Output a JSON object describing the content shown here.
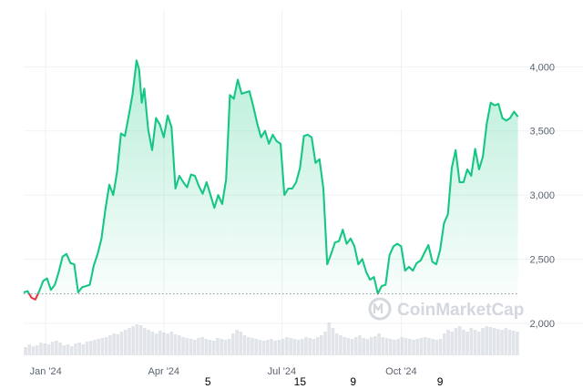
{
  "chart_data": {
    "type": "area",
    "title": "",
    "xlabel": "",
    "ylabel": "",
    "x_ticks": [
      "Jan '24",
      "Apr '24",
      "Jul '24",
      "Oct '24"
    ],
    "x_tick_dates": [
      "2024-01-01",
      "2024-04-01",
      "2024-07-01",
      "2024-10-01"
    ],
    "x_range": [
      "2023-12-15",
      "2024-12-31"
    ],
    "y_ticks": [
      "2,000",
      "2,500",
      "3,000",
      "3,500",
      "4,000"
    ],
    "y_tick_values": [
      2000,
      2500,
      3000,
      3500,
      4000
    ],
    "ylim": [
      1750,
      4450
    ],
    "baseline": 2230,
    "grid": true,
    "colors": {
      "up": "#16c784",
      "down": "#ea3943",
      "baseline": "#9aa1ab",
      "grid": "#eff2f5",
      "volume": "#c9ced6"
    },
    "series": [
      {
        "x": [
          "2023-12-15",
          "2023-12-18",
          "2023-12-21",
          "2023-12-24",
          "2023-12-27",
          "2023-12-30",
          "2024-01-02",
          "2024-01-05",
          "2024-01-08",
          "2024-01-11",
          "2024-01-14",
          "2024-01-17",
          "2024-01-20",
          "2024-01-23",
          "2024-01-26",
          "2024-01-29",
          "2024-02-01",
          "2024-02-04",
          "2024-02-07",
          "2024-02-10",
          "2024-02-13",
          "2024-02-16",
          "2024-02-19",
          "2024-02-22",
          "2024-02-25",
          "2024-02-28",
          "2024-03-02",
          "2024-03-05",
          "2024-03-08",
          "2024-03-11",
          "2024-03-13",
          "2024-03-15",
          "2024-03-17",
          "2024-03-20",
          "2024-03-23",
          "2024-03-26",
          "2024-03-29",
          "2024-04-01",
          "2024-04-04",
          "2024-04-07",
          "2024-04-10",
          "2024-04-13",
          "2024-04-16",
          "2024-04-19",
          "2024-04-22",
          "2024-04-25",
          "2024-04-28",
          "2024-05-01",
          "2024-05-04",
          "2024-05-07",
          "2024-05-10",
          "2024-05-13",
          "2024-05-16",
          "2024-05-19",
          "2024-05-22",
          "2024-05-25",
          "2024-05-28",
          "2024-05-31",
          "2024-06-03",
          "2024-06-06",
          "2024-06-09",
          "2024-06-12",
          "2024-06-15",
          "2024-06-18",
          "2024-06-21",
          "2024-06-24",
          "2024-06-27",
          "2024-06-30",
          "2024-07-03",
          "2024-07-06",
          "2024-07-09",
          "2024-07-12",
          "2024-07-15",
          "2024-07-18",
          "2024-07-21",
          "2024-07-24",
          "2024-07-27",
          "2024-07-30",
          "2024-08-02",
          "2024-08-05",
          "2024-08-08",
          "2024-08-11",
          "2024-08-14",
          "2024-08-17",
          "2024-08-20",
          "2024-08-23",
          "2024-08-26",
          "2024-08-29",
          "2024-09-01",
          "2024-09-04",
          "2024-09-07",
          "2024-09-10",
          "2024-09-13",
          "2024-09-16",
          "2024-09-19",
          "2024-09-22",
          "2024-09-25",
          "2024-09-28",
          "2024-10-01",
          "2024-10-04",
          "2024-10-07",
          "2024-10-10",
          "2024-10-13",
          "2024-10-16",
          "2024-10-19",
          "2024-10-22",
          "2024-10-25",
          "2024-10-28",
          "2024-10-31",
          "2024-11-03",
          "2024-11-06",
          "2024-11-09",
          "2024-11-12",
          "2024-11-15",
          "2024-11-18",
          "2024-11-21",
          "2024-11-24",
          "2024-11-27",
          "2024-11-30",
          "2024-12-03",
          "2024-12-06",
          "2024-12-09",
          "2024-12-12",
          "2024-12-15",
          "2024-12-18",
          "2024-12-21",
          "2024-12-24",
          "2024-12-27",
          "2024-12-30"
        ],
        "values": [
          2240,
          2250,
          2200,
          2185,
          2250,
          2330,
          2350,
          2260,
          2300,
          2400,
          2520,
          2540,
          2470,
          2460,
          2240,
          2280,
          2290,
          2300,
          2450,
          2540,
          2660,
          2890,
          3080,
          3000,
          3180,
          3480,
          3460,
          3620,
          3790,
          4050,
          3980,
          3720,
          3830,
          3510,
          3350,
          3600,
          3550,
          3450,
          3620,
          3530,
          3050,
          3150,
          3100,
          3060,
          3160,
          3150,
          3070,
          3010,
          3100,
          3000,
          2900,
          3000,
          2930,
          3120,
          3780,
          3750,
          3900,
          3790,
          3800,
          3810,
          3690,
          3560,
          3450,
          3500,
          3400,
          3470,
          3420,
          3400,
          3000,
          3050,
          3050,
          3100,
          3210,
          3460,
          3470,
          3450,
          3250,
          3280,
          3050,
          2460,
          2540,
          2630,
          2640,
          2730,
          2620,
          2660,
          2600,
          2460,
          2500,
          2400,
          2340,
          2360,
          2230,
          2290,
          2300,
          2530,
          2600,
          2620,
          2600,
          2410,
          2440,
          2410,
          2470,
          2490,
          2550,
          2610,
          2480,
          2460,
          2570,
          2780,
          2850,
          3210,
          3350,
          3100,
          3100,
          3200,
          3150,
          3360,
          3200,
          3300,
          3560,
          3720,
          3700,
          3710,
          3600,
          3580,
          3600,
          3650,
          3610
        ]
      }
    ],
    "volume": [
      45,
      60,
      50,
      55,
      70,
      65,
      60,
      75,
      80,
      70,
      55,
      60,
      50,
      65,
      70,
      60,
      75,
      80,
      85,
      90,
      95,
      100,
      110,
      120,
      115,
      130,
      140,
      150,
      160,
      170,
      165,
      150,
      140,
      130,
      120,
      135,
      125,
      120,
      130,
      115,
      110,
      100,
      95,
      90,
      85,
      95,
      100,
      90,
      85,
      80,
      95,
      90,
      85,
      90,
      120,
      140,
      130,
      110,
      100,
      95,
      90,
      85,
      80,
      85,
      90,
      80,
      85,
      90,
      100,
      95,
      90,
      85,
      90,
      100,
      95,
      90,
      100,
      110,
      130,
      180,
      150,
      120,
      110,
      100,
      95,
      90,
      100,
      110,
      95,
      90,
      100,
      105,
      120,
      100,
      95,
      90,
      85,
      90,
      100,
      95,
      90,
      85,
      90,
      95,
      100,
      95,
      90,
      85,
      90,
      120,
      140,
      130,
      150,
      160,
      140,
      130,
      150,
      140,
      130,
      150,
      160,
      155,
      150,
      145,
      140,
      150,
      140,
      135,
      130
    ],
    "watermark": "CoinMarketCap"
  },
  "stray_labels": [
    {
      "text": "5",
      "x": "2024-05-05"
    },
    {
      "text": "15",
      "x": "2024-07-15"
    },
    {
      "text": "9",
      "x": "2024-08-25"
    },
    {
      "text": "9",
      "x": "2024-10-31"
    }
  ]
}
